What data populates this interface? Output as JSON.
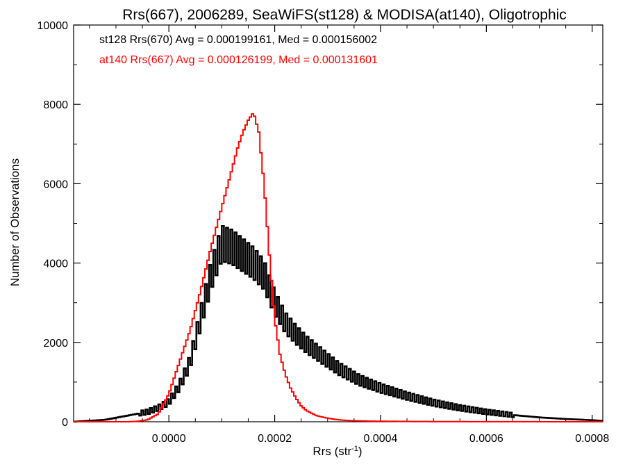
{
  "chart_data": {
    "type": "line",
    "title": "Rrs(667), 2006289, SeaWiFS(st128) & MODISA(at140), Oligotrophic",
    "xlabel_base": "Rrs (str",
    "xlabel_sup": "-1",
    "xlabel_close": ")",
    "ylabel": "Number of Observations",
    "xlim": [
      -0.00018,
      0.00082
    ],
    "ylim": [
      0,
      10000
    ],
    "xticks": [
      "0.0000",
      "0.0002",
      "0.0004",
      "0.0006",
      "0.0008"
    ],
    "xtick_values": [
      0.0,
      0.0002,
      0.0004,
      0.0006,
      0.0008
    ],
    "yticks": [
      "0",
      "2000",
      "4000",
      "6000",
      "8000",
      "10000"
    ],
    "ytick_values": [
      0,
      2000,
      4000,
      6000,
      8000,
      10000
    ],
    "grid": false,
    "legend_placement": "top-left",
    "series": [
      {
        "name": "st128 Rrs(670) Avg = 0.000199161, Med = 0.000156002",
        "color": "#000000",
        "style": "step-jagged",
        "x": [
          -0.00018,
          -0.00012,
          -8e-05,
          -4e-05,
          -2e-05,
          0.0,
          2e-05,
          4e-05,
          6e-05,
          8e-05,
          0.0001,
          0.00012,
          0.00014,
          0.00016,
          0.00018,
          0.0002,
          0.00022,
          0.00024,
          0.00026,
          0.00028,
          0.0003,
          0.00032,
          0.00034,
          0.00036,
          0.00038,
          0.0004,
          0.00045,
          0.0005,
          0.00055,
          0.0006,
          0.00065,
          0.0007,
          0.00075,
          0.0008,
          0.00082
        ],
        "y": [
          0,
          50,
          150,
          250,
          350,
          500,
          900,
          1500,
          2600,
          3700,
          4500,
          4400,
          4200,
          4000,
          3700,
          3000,
          2500,
          2200,
          1950,
          1750,
          1550,
          1350,
          1200,
          1050,
          950,
          850,
          650,
          480,
          350,
          250,
          170,
          110,
          70,
          40,
          20
        ]
      },
      {
        "name": "at140 Rrs(667) Avg = 0.000126199, Med = 0.000131601",
        "color": "#ff0000",
        "style": "step",
        "x": [
          -0.00018,
          -8e-05,
          -6e-05,
          -4e-05,
          -2e-05,
          0.0,
          2e-05,
          4e-05,
          6e-05,
          8e-05,
          0.0001,
          0.00011,
          0.00012,
          0.00013,
          0.00014,
          0.00015,
          0.00016,
          0.00017,
          0.00018,
          0.00019,
          0.0002,
          0.00021,
          0.00022,
          0.00023,
          0.00024,
          0.00025,
          0.00026,
          0.00028,
          0.0003,
          0.00032,
          0.00034,
          0.00038,
          0.00045,
          0.0005,
          0.0006,
          0.00082
        ],
        "y": [
          0,
          0,
          10,
          50,
          200,
          700,
          1500,
          2300,
          3300,
          4400,
          5400,
          5900,
          6400,
          6900,
          7300,
          7600,
          7800,
          7300,
          6000,
          4200,
          2600,
          1700,
          1200,
          850,
          600,
          400,
          280,
          150,
          90,
          50,
          30,
          15,
          8,
          5,
          2,
          0
        ]
      }
    ]
  }
}
